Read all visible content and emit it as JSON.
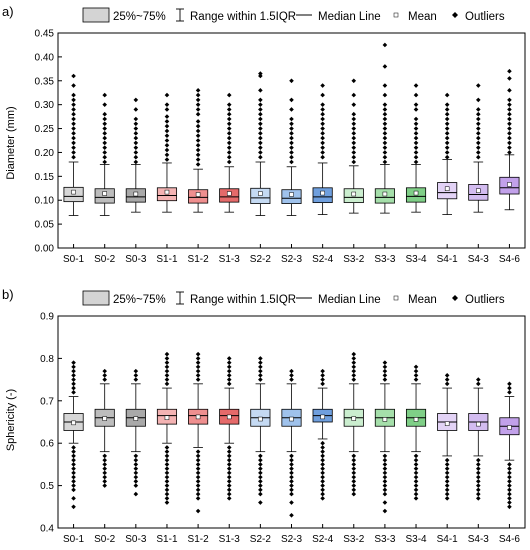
{
  "legend": {
    "box_label": "25%~75%",
    "range_label": "Range within 1.5IQR",
    "median_label": "Median Line",
    "mean_label": "Mean",
    "outliers_label": "Outliers"
  },
  "chart_data": [
    {
      "panel_label": "a)",
      "type": "box",
      "ylabel": "Diameter (mm)",
      "ylim": [
        0.0,
        0.45
      ],
      "yticks": [
        "0.00",
        "0.05",
        "0.10",
        "0.15",
        "0.20",
        "0.25",
        "0.30",
        "0.35",
        "0.40",
        "0.45"
      ],
      "categories": [
        "S0-1",
        "S0-2",
        "S0-3",
        "S1-1",
        "S1-2",
        "S1-3",
        "S2-2",
        "S2-3",
        "S2-4",
        "S3-2",
        "S3-3",
        "S3-4",
        "S4-1",
        "S4-3",
        "S4-6"
      ],
      "colors": [
        "#d6d6d6",
        "#bdbdbd",
        "#a9a9a9",
        "#f4b3b3",
        "#ef8f8f",
        "#e56a6a",
        "#c5daf3",
        "#9fc2ec",
        "#6f9fde",
        "#cbeecf",
        "#a5dfaa",
        "#7fcf87",
        "#e3d3f6",
        "#d3bcf0",
        "#c2a1ea"
      ],
      "boxes": [
        {
          "q1": 0.097,
          "median": 0.108,
          "q3": 0.127,
          "whisker_low": 0.068,
          "whisker_high": 0.18,
          "mean": 0.117,
          "outliers": [
            0.19,
            0.2,
            0.21,
            0.22,
            0.23,
            0.24,
            0.25,
            0.26,
            0.27,
            0.28,
            0.29,
            0.3,
            0.31,
            0.32,
            0.34,
            0.36
          ]
        },
        {
          "q1": 0.094,
          "median": 0.106,
          "q3": 0.124,
          "whisker_low": 0.068,
          "whisker_high": 0.175,
          "mean": 0.114,
          "outliers": [
            0.18,
            0.19,
            0.2,
            0.21,
            0.22,
            0.23,
            0.24,
            0.25,
            0.26,
            0.27,
            0.28,
            0.3,
            0.32
          ]
        },
        {
          "q1": 0.096,
          "median": 0.107,
          "q3": 0.124,
          "whisker_low": 0.075,
          "whisker_high": 0.175,
          "mean": 0.113,
          "outliers": [
            0.18,
            0.19,
            0.2,
            0.21,
            0.22,
            0.23,
            0.24,
            0.25,
            0.26,
            0.27,
            0.29,
            0.31
          ]
        },
        {
          "q1": 0.099,
          "median": 0.11,
          "q3": 0.126,
          "whisker_low": 0.075,
          "whisker_high": 0.178,
          "mean": 0.117,
          "outliers": [
            0.185,
            0.195,
            0.205,
            0.215,
            0.225,
            0.235,
            0.245,
            0.255,
            0.265,
            0.275,
            0.29,
            0.3,
            0.32
          ]
        },
        {
          "q1": 0.094,
          "median": 0.106,
          "q3": 0.122,
          "whisker_low": 0.075,
          "whisker_high": 0.165,
          "mean": 0.112,
          "outliers": [
            0.175,
            0.185,
            0.195,
            0.205,
            0.215,
            0.225,
            0.235,
            0.245,
            0.255,
            0.265,
            0.28,
            0.29,
            0.3,
            0.31,
            0.32,
            0.33
          ]
        },
        {
          "q1": 0.096,
          "median": 0.107,
          "q3": 0.124,
          "whisker_low": 0.075,
          "whisker_high": 0.17,
          "mean": 0.114,
          "outliers": [
            0.18,
            0.19,
            0.2,
            0.21,
            0.22,
            0.23,
            0.24,
            0.25,
            0.26,
            0.27,
            0.28,
            0.29,
            0.3,
            0.32
          ]
        },
        {
          "q1": 0.093,
          "median": 0.105,
          "q3": 0.125,
          "whisker_low": 0.068,
          "whisker_high": 0.18,
          "mean": 0.114,
          "outliers": [
            0.19,
            0.2,
            0.21,
            0.22,
            0.23,
            0.24,
            0.25,
            0.26,
            0.27,
            0.28,
            0.29,
            0.3,
            0.31,
            0.33,
            0.36,
            0.365
          ]
        },
        {
          "q1": 0.093,
          "median": 0.104,
          "q3": 0.122,
          "whisker_low": 0.068,
          "whisker_high": 0.17,
          "mean": 0.112,
          "outliers": [
            0.18,
            0.19,
            0.2,
            0.21,
            0.22,
            0.23,
            0.24,
            0.25,
            0.26,
            0.27,
            0.29,
            0.31,
            0.35
          ]
        },
        {
          "q1": 0.095,
          "median": 0.107,
          "q3": 0.126,
          "whisker_low": 0.07,
          "whisker_high": 0.178,
          "mean": 0.115,
          "outliers": [
            0.19,
            0.2,
            0.21,
            0.22,
            0.23,
            0.24,
            0.25,
            0.26,
            0.27,
            0.28,
            0.29,
            0.3,
            0.32,
            0.34
          ]
        },
        {
          "q1": 0.095,
          "median": 0.106,
          "q3": 0.124,
          "whisker_low": 0.073,
          "whisker_high": 0.172,
          "mean": 0.113,
          "outliers": [
            0.18,
            0.19,
            0.2,
            0.21,
            0.22,
            0.23,
            0.24,
            0.25,
            0.26,
            0.27,
            0.28,
            0.3,
            0.32,
            0.35
          ]
        },
        {
          "q1": 0.094,
          "median": 0.106,
          "q3": 0.124,
          "whisker_low": 0.073,
          "whisker_high": 0.175,
          "mean": 0.113,
          "outliers": [
            0.18,
            0.19,
            0.2,
            0.21,
            0.22,
            0.23,
            0.24,
            0.25,
            0.26,
            0.27,
            0.28,
            0.29,
            0.3,
            0.32,
            0.34,
            0.38,
            0.425
          ]
        },
        {
          "q1": 0.096,
          "median": 0.108,
          "q3": 0.126,
          "whisker_low": 0.075,
          "whisker_high": 0.175,
          "mean": 0.115,
          "outliers": [
            0.18,
            0.19,
            0.2,
            0.21,
            0.22,
            0.23,
            0.24,
            0.25,
            0.26,
            0.27,
            0.29,
            0.3,
            0.32,
            0.34
          ]
        },
        {
          "q1": 0.103,
          "median": 0.116,
          "q3": 0.137,
          "whisker_low": 0.07,
          "whisker_high": 0.185,
          "mean": 0.124,
          "outliers": [
            0.19,
            0.2,
            0.21,
            0.22,
            0.23,
            0.24,
            0.25,
            0.26,
            0.27,
            0.28,
            0.29,
            0.3,
            0.32
          ]
        },
        {
          "q1": 0.1,
          "median": 0.112,
          "q3": 0.133,
          "whisker_low": 0.075,
          "whisker_high": 0.18,
          "mean": 0.12,
          "outliers": [
            0.19,
            0.2,
            0.21,
            0.22,
            0.23,
            0.24,
            0.25,
            0.26,
            0.27,
            0.28,
            0.29,
            0.31,
            0.34
          ]
        },
        {
          "q1": 0.113,
          "median": 0.126,
          "q3": 0.148,
          "whisker_low": 0.08,
          "whisker_high": 0.195,
          "mean": 0.133,
          "outliers": [
            0.2,
            0.21,
            0.22,
            0.23,
            0.24,
            0.25,
            0.26,
            0.27,
            0.28,
            0.29,
            0.3,
            0.31,
            0.33,
            0.355,
            0.37
          ]
        }
      ]
    },
    {
      "panel_label": "b)",
      "type": "box",
      "ylabel": "Sphericity (-)",
      "ylim": [
        0.4,
        0.9
      ],
      "yticks": [
        "0.4",
        "0.5",
        "0.6",
        "0.7",
        "0.8",
        "0.9"
      ],
      "categories": [
        "S0-1",
        "S0-2",
        "S0-3",
        "S1-1",
        "S1-2",
        "S1-3",
        "S2-2",
        "S2-3",
        "S2-4",
        "S3-2",
        "S3-3",
        "S3-4",
        "S4-1",
        "S4-3",
        "S4-6"
      ],
      "colors": [
        "#d6d6d6",
        "#bdbdbd",
        "#a9a9a9",
        "#f4b3b3",
        "#ef8f8f",
        "#e56a6a",
        "#c5daf3",
        "#9fc2ec",
        "#6f9fde",
        "#cbeecf",
        "#a5dfaa",
        "#7fcf87",
        "#e3d3f6",
        "#d3bcf0",
        "#c2a1ea"
      ],
      "boxes": [
        {
          "q1": 0.63,
          "median": 0.65,
          "q3": 0.67,
          "whisker_low": 0.6,
          "whisker_high": 0.71,
          "mean": 0.648,
          "outliers": [
            0.45,
            0.47,
            0.49,
            0.5,
            0.51,
            0.52,
            0.53,
            0.54,
            0.55,
            0.56,
            0.57,
            0.58,
            0.59,
            0.72,
            0.73,
            0.74,
            0.75,
            0.76,
            0.77,
            0.78,
            0.79
          ]
        },
        {
          "q1": 0.64,
          "median": 0.66,
          "q3": 0.68,
          "whisker_low": 0.58,
          "whisker_high": 0.74,
          "mean": 0.658,
          "outliers": [
            0.5,
            0.51,
            0.52,
            0.53,
            0.54,
            0.55,
            0.56,
            0.57,
            0.75,
            0.76,
            0.77
          ]
        },
        {
          "q1": 0.64,
          "median": 0.66,
          "q3": 0.68,
          "whisker_low": 0.58,
          "whisker_high": 0.74,
          "mean": 0.658,
          "outliers": [
            0.48,
            0.5,
            0.51,
            0.52,
            0.53,
            0.54,
            0.55,
            0.56,
            0.57,
            0.75,
            0.76,
            0.77
          ]
        },
        {
          "q1": 0.645,
          "median": 0.665,
          "q3": 0.68,
          "whisker_low": 0.6,
          "whisker_high": 0.73,
          "mean": 0.66,
          "outliers": [
            0.46,
            0.47,
            0.48,
            0.49,
            0.5,
            0.51,
            0.52,
            0.53,
            0.54,
            0.55,
            0.56,
            0.57,
            0.58,
            0.59,
            0.74,
            0.75,
            0.76,
            0.77,
            0.78,
            0.79,
            0.8,
            0.81
          ]
        },
        {
          "q1": 0.645,
          "median": 0.665,
          "q3": 0.68,
          "whisker_low": 0.59,
          "whisker_high": 0.74,
          "mean": 0.662,
          "outliers": [
            0.44,
            0.47,
            0.48,
            0.49,
            0.5,
            0.51,
            0.52,
            0.53,
            0.54,
            0.55,
            0.56,
            0.57,
            0.58,
            0.75,
            0.76,
            0.77,
            0.78,
            0.79,
            0.8,
            0.81
          ]
        },
        {
          "q1": 0.645,
          "median": 0.665,
          "q3": 0.68,
          "whisker_low": 0.6,
          "whisker_high": 0.73,
          "mean": 0.662,
          "outliers": [
            0.47,
            0.48,
            0.49,
            0.5,
            0.51,
            0.52,
            0.53,
            0.54,
            0.55,
            0.56,
            0.57,
            0.58,
            0.59,
            0.74,
            0.75,
            0.76,
            0.77,
            0.78,
            0.79,
            0.8
          ]
        },
        {
          "q1": 0.64,
          "median": 0.66,
          "q3": 0.68,
          "whisker_low": 0.58,
          "whisker_high": 0.74,
          "mean": 0.657,
          "outliers": [
            0.46,
            0.48,
            0.49,
            0.5,
            0.51,
            0.52,
            0.53,
            0.54,
            0.55,
            0.56,
            0.57,
            0.75,
            0.76,
            0.77,
            0.78,
            0.79,
            0.8
          ]
        },
        {
          "q1": 0.64,
          "median": 0.66,
          "q3": 0.68,
          "whisker_low": 0.58,
          "whisker_high": 0.74,
          "mean": 0.657,
          "outliers": [
            0.43,
            0.46,
            0.48,
            0.49,
            0.5,
            0.51,
            0.52,
            0.53,
            0.54,
            0.55,
            0.56,
            0.57,
            0.75,
            0.76,
            0.77
          ]
        },
        {
          "q1": 0.65,
          "median": 0.665,
          "q3": 0.68,
          "whisker_low": 0.61,
          "whisker_high": 0.73,
          "mean": 0.662,
          "outliers": [
            0.47,
            0.48,
            0.49,
            0.5,
            0.51,
            0.52,
            0.53,
            0.54,
            0.55,
            0.56,
            0.57,
            0.58,
            0.59,
            0.6,
            0.74,
            0.75,
            0.76,
            0.77
          ]
        },
        {
          "q1": 0.64,
          "median": 0.66,
          "q3": 0.68,
          "whisker_low": 0.58,
          "whisker_high": 0.74,
          "mean": 0.658,
          "outliers": [
            0.48,
            0.49,
            0.5,
            0.51,
            0.52,
            0.53,
            0.54,
            0.55,
            0.56,
            0.57,
            0.75,
            0.76,
            0.77,
            0.78,
            0.79,
            0.8,
            0.81
          ]
        },
        {
          "q1": 0.64,
          "median": 0.66,
          "q3": 0.68,
          "whisker_low": 0.58,
          "whisker_high": 0.74,
          "mean": 0.656,
          "outliers": [
            0.44,
            0.46,
            0.48,
            0.49,
            0.5,
            0.51,
            0.52,
            0.53,
            0.54,
            0.55,
            0.56,
            0.57,
            0.75,
            0.76,
            0.77,
            0.78,
            0.79
          ]
        },
        {
          "q1": 0.64,
          "median": 0.66,
          "q3": 0.68,
          "whisker_low": 0.58,
          "whisker_high": 0.74,
          "mean": 0.656,
          "outliers": [
            0.47,
            0.48,
            0.49,
            0.5,
            0.51,
            0.52,
            0.53,
            0.54,
            0.55,
            0.56,
            0.57,
            0.75,
            0.76,
            0.77,
            0.78
          ]
        },
        {
          "q1": 0.63,
          "median": 0.65,
          "q3": 0.67,
          "whisker_low": 0.57,
          "whisker_high": 0.73,
          "mean": 0.646,
          "outliers": [
            0.47,
            0.48,
            0.49,
            0.5,
            0.51,
            0.52,
            0.53,
            0.54,
            0.55,
            0.56,
            0.74,
            0.75,
            0.76
          ]
        },
        {
          "q1": 0.63,
          "median": 0.65,
          "q3": 0.67,
          "whisker_low": 0.57,
          "whisker_high": 0.73,
          "mean": 0.645,
          "outliers": [
            0.47,
            0.48,
            0.49,
            0.5,
            0.51,
            0.52,
            0.53,
            0.54,
            0.55,
            0.56,
            0.74,
            0.75
          ]
        },
        {
          "q1": 0.62,
          "median": 0.64,
          "q3": 0.66,
          "whisker_low": 0.56,
          "whisker_high": 0.71,
          "mean": 0.637,
          "outliers": [
            0.45,
            0.46,
            0.47,
            0.48,
            0.49,
            0.5,
            0.51,
            0.52,
            0.53,
            0.54,
            0.55,
            0.72,
            0.73,
            0.74
          ]
        }
      ]
    }
  ]
}
